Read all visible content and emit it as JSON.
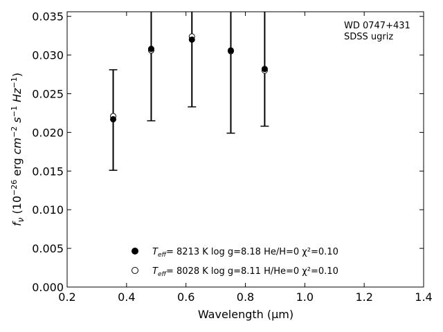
{
  "chart_data": {
    "type": "scatter",
    "title": "",
    "xlabel": "Wavelength (μm)",
    "ylabel": "f_ν (10^-26 erg cm^-2 s^-1 Hz^-1)",
    "xlim": [
      0.2,
      1.4
    ],
    "ylim": [
      0.0,
      0.0356
    ],
    "x_ticks": [
      0.2,
      0.4,
      0.6,
      0.8,
      1.0,
      1.2,
      1.4
    ],
    "x_tick_labels": [
      "0.2",
      "0.4",
      "0.6",
      "0.8",
      "1.0",
      "1.2",
      "1.4"
    ],
    "y_ticks": [
      0.0,
      0.005,
      0.01,
      0.015,
      0.02,
      0.025,
      0.03,
      0.035
    ],
    "y_tick_labels": [
      "0.000",
      "0.005",
      "0.010",
      "0.015",
      "0.020",
      "0.025",
      "0.030",
      "0.035"
    ],
    "grid": false,
    "annotation_lines": [
      "WD 0747+431",
      "SDSS ugriz"
    ],
    "observed": {
      "x": [
        0.355,
        0.483,
        0.62,
        0.751,
        0.865
      ],
      "y": [
        0.0217,
        0.0308,
        0.032,
        0.0306,
        0.0282
      ],
      "yerr_low": [
        0.0151,
        0.0215,
        0.0233,
        0.0199,
        0.0208
      ],
      "yerr_high": [
        0.0281,
        0.0357,
        0.0357,
        0.0357,
        0.0357
      ]
    },
    "model": {
      "x": [
        0.355,
        0.483,
        0.62,
        0.751,
        0.865
      ],
      "y": [
        0.0221,
        0.0306,
        0.0324,
        0.0305,
        0.028
      ]
    },
    "legend": [
      {
        "marker": "filled-circle",
        "text": "T_eff=  8213 K  log g=8.18  He/H=0  χ²=0.10"
      },
      {
        "marker": "open-circle",
        "text": "T_eff=  8028 K  log g=8.11  H/He=0  χ²=0.10"
      }
    ],
    "legend_position": "lower-center",
    "colors": {
      "marker": "#000000",
      "axis": "#000000"
    }
  }
}
